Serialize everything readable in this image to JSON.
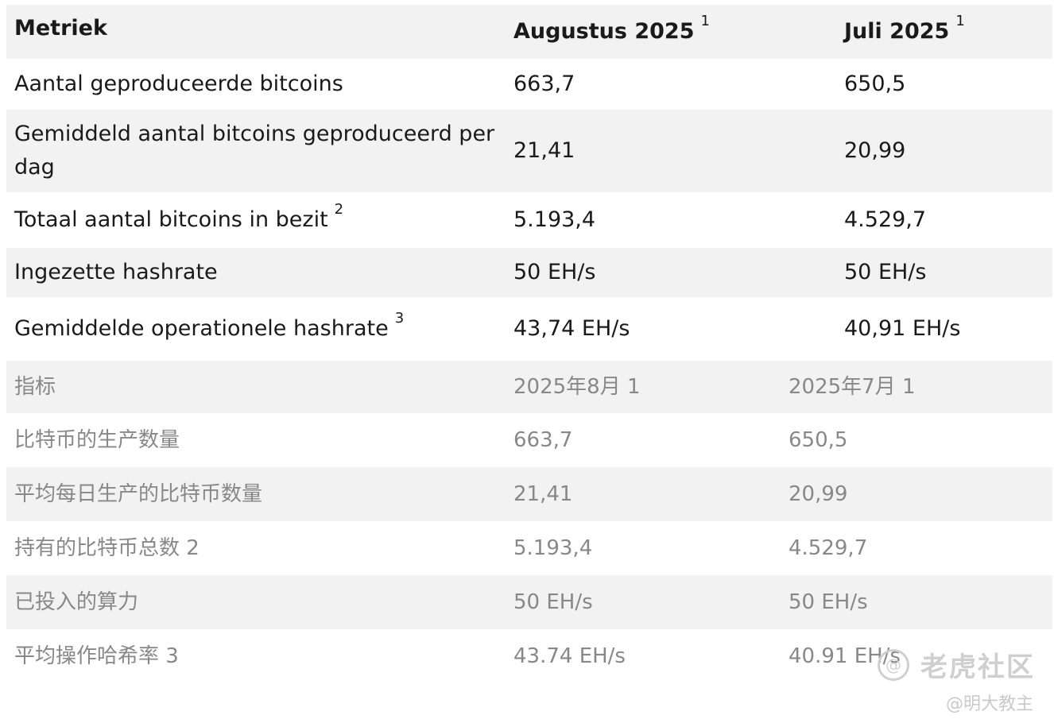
{
  "table_nl": {
    "header": {
      "metric": "Metriek",
      "aug": "Augustus 2025",
      "jul": "Juli 2025",
      "fn": "1"
    },
    "rows": [
      {
        "label": "Aantal geproduceerde bitcoins",
        "fn": "",
        "aug": "663,7",
        "jul": "650,5"
      },
      {
        "label": "Gemiddeld aantal bitcoins geproduceerd per dag",
        "fn": "",
        "aug": "21,41",
        "jul": "20,99"
      },
      {
        "label": "Totaal aantal bitcoins in bezit",
        "fn": "2",
        "aug": "5.193,4",
        "jul": "4.529,7"
      },
      {
        "label": "Ingezette hashrate",
        "fn": "",
        "aug": "50 EH/s",
        "jul": "50 EH/s"
      },
      {
        "label": "Gemiddelde operationele hashrate",
        "fn": "3",
        "aug": "43,74 EH/s",
        "jul": "40,91 EH/s"
      }
    ]
  },
  "table_cn": {
    "header": {
      "metric": "指标",
      "aug": "2025年8月 1",
      "jul": "2025年7月 1"
    },
    "rows": [
      {
        "label": "比特币的生产数量",
        "aug": "663,7",
        "jul": "650,5"
      },
      {
        "label": "平均每日生产的比特币数量",
        "aug": "21,41",
        "jul": "20,99"
      },
      {
        "label": "持有的比特币总数 2",
        "aug": "5.193,4",
        "jul": "4.529,7"
      },
      {
        "label": "已投入的算力",
        "aug": "50 EH/s",
        "jul": "50 EH/s"
      },
      {
        "label": "平均操作哈希率 3",
        "aug": "43.74 EH/s",
        "jul": "40.91 EH/s"
      }
    ]
  },
  "watermark": {
    "logo_glyph": "@",
    "text": "老虎社区",
    "handle": "@明大教主"
  }
}
